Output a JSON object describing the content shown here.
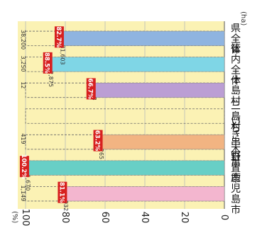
{
  "chart_data": {
    "type": "bar",
    "orientation": "vertical-rotated",
    "unit_y": "(%)",
    "unit_values": "(ha)",
    "ylim": [
      0,
      100
    ],
    "yticks": [
      "0",
      "20",
      "40",
      "60",
      "80",
      "100"
    ],
    "categories": [
      "鹿児島市",
      "日置市",
      "いちき串木野市",
      "三島村",
      "十島村",
      "管内全体",
      "県全体"
    ],
    "capacity_labels": [
      "1,149",
      "1,666",
      "419",
      "",
      "12",
      "3,250",
      "38,200"
    ],
    "actual_labels": [
      "932",
      "1,670",
      "265",
      "",
      "8",
      "2,875",
      "31,603"
    ],
    "percent_labels": [
      "81.1%",
      "100.2%",
      "63.2%",
      "",
      "66.7%",
      "88.5%",
      "82.7%"
    ],
    "values": [
      81.1,
      100.2,
      63.2,
      0,
      66.7,
      88.5,
      82.7
    ],
    "colors": {
      "background": "#fbf2b4",
      "label_box": "#d7201f",
      "bars": [
        "#f3b6cf",
        "#68cfc6",
        "#f2b482",
        "#ffffff",
        "#bb9ed4",
        "#7fd6e6",
        "#8fb4e0"
      ]
    }
  }
}
